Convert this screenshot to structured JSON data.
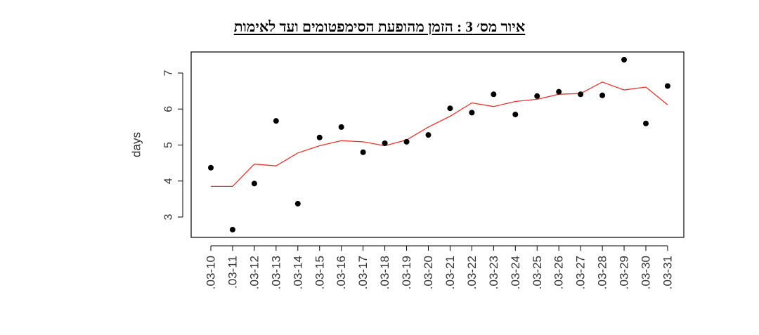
{
  "chart_data": {
    "type": "scatter",
    "title": "איור מס׳ 3 :  הזמן מהופעת הסימפטומים ועד לאימות",
    "xlabel": "",
    "ylabel": "days",
    "ylim": [
      2.5,
      7.6
    ],
    "yticks": [
      3,
      4,
      5,
      6,
      7
    ],
    "grid": false,
    "categories": [
      ".03-10",
      ".03-11",
      ".03-12",
      ".03-13",
      ".03-14",
      ".03-15",
      ".03-16",
      ".03-17",
      ".03-18",
      ".03-19",
      ".03-20",
      ".03-21",
      ".03-22",
      ".03-23",
      ".03-24",
      ".03-25",
      ".03-26",
      ".03-27",
      ".03-28",
      ".03-29",
      ".03-30",
      ".03-31"
    ],
    "series": [
      {
        "kind": "points",
        "color": "#000000",
        "values": [
          4.37,
          2.65,
          3.93,
          5.67,
          3.37,
          5.21,
          5.5,
          4.8,
          5.05,
          5.09,
          5.28,
          6.02,
          5.9,
          6.41,
          5.85,
          6.36,
          6.48,
          6.41,
          6.38,
          7.37,
          5.6,
          6.64
        ]
      },
      {
        "kind": "line",
        "color": "#e8312f",
        "values": [
          3.85,
          3.85,
          4.47,
          4.42,
          4.78,
          4.98,
          5.12,
          5.09,
          4.98,
          5.14,
          5.5,
          5.8,
          6.17,
          6.07,
          6.21,
          6.27,
          6.41,
          6.43,
          6.75,
          6.53,
          6.61,
          6.12
        ]
      }
    ]
  }
}
